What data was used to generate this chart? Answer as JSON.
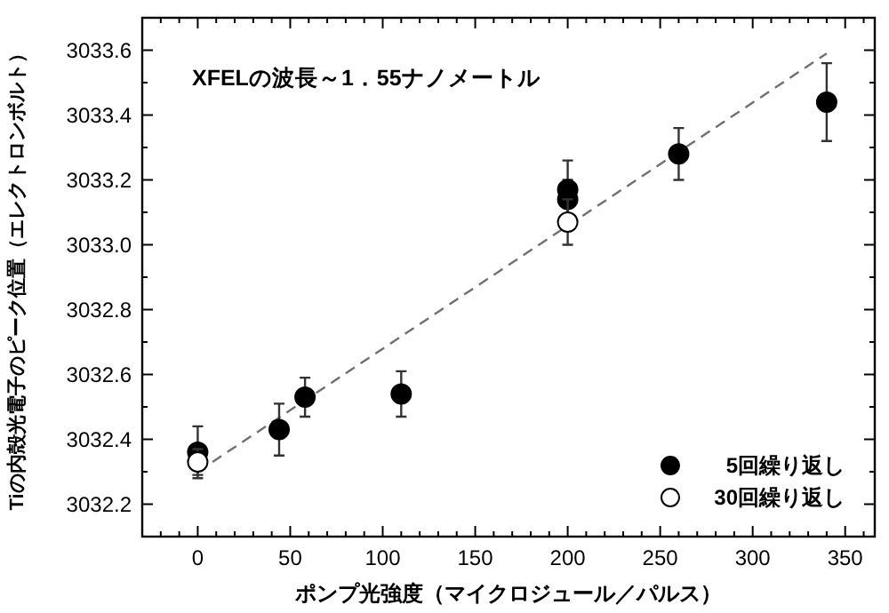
{
  "chart_data": {
    "type": "scatter",
    "xlabel": "ポンプ光強度（マイクロジュール／パルス）",
    "ylabel": "Tiの内殻光電子のピーク位置（エレクトロンボルト）",
    "annotations": [
      "XFELの波長～1．55ナノメートル"
    ],
    "xlim": [
      -30,
      366
    ],
    "ylim": [
      3032.1,
      3033.7
    ],
    "xticks": [
      0,
      50,
      100,
      150,
      200,
      250,
      300,
      350
    ],
    "yticks": [
      3032.2,
      3032.4,
      3032.6,
      3032.8,
      {
        "value": 3033,
        "label": "3033.0"
      },
      3033.2,
      3033.4,
      3033.6
    ],
    "grid": false,
    "legend": "bottom right",
    "marker": "circle",
    "series": [
      {
        "type": "line",
        "line_style": "dashed",
        "color": "#707070",
        "x": [
          0,
          340
        ],
        "values": [
          3032.3,
          3033.59
        ],
        "marker": "none"
      },
      {
        "name": "5回繰り返し",
        "color": "#000000",
        "x": [
          0,
          44,
          58,
          110,
          200,
          200,
          260,
          340
        ],
        "values": [
          3032.36,
          3032.43,
          3032.53,
          3032.54,
          3033.17,
          3033.14,
          3033.28,
          3033.44
        ],
        "errors": [
          0.08,
          0.08,
          0.06,
          0.07,
          0.09,
          0.06,
          0.08,
          0.12
        ]
      },
      {
        "name": "30回繰り返し",
        "color": "#ffffff",
        "x": [
          0,
          200
        ],
        "values": [
          3032.33,
          3033.07
        ],
        "errors": [
          0.04,
          0.07
        ]
      }
    ]
  }
}
